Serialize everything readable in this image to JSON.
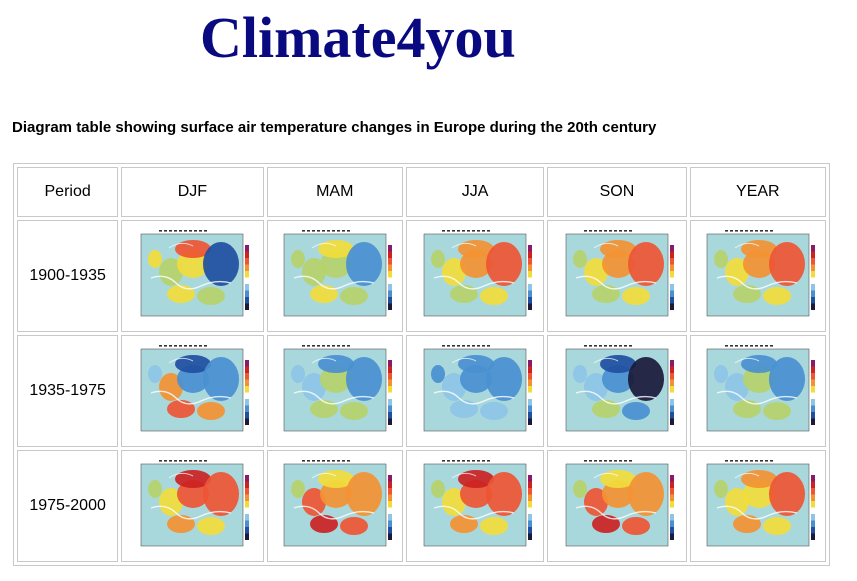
{
  "site": {
    "title": "Climate4you"
  },
  "caption": "Diagram table showing surface air temperature changes in Europe during the 20th century",
  "table": {
    "corner": "Period",
    "seasons": [
      "DJF",
      "MAM",
      "JJA",
      "SON",
      "YEAR"
    ],
    "periods": [
      "1900-1935",
      "1935-1975",
      "1975-2000"
    ]
  },
  "maps": [
    [
      "warm-north-cool-east",
      "cool-east",
      "warm-northeast",
      "warm-northeast",
      "warm-northeast"
    ],
    [
      "cool-north-warm-south",
      "cool-north",
      "cool-widespread",
      "cool-strong-northeast",
      "cool-north"
    ],
    [
      "warm-widespread",
      "warm-south",
      "warm-widespread",
      "warm-south",
      "warm-east"
    ]
  ]
}
